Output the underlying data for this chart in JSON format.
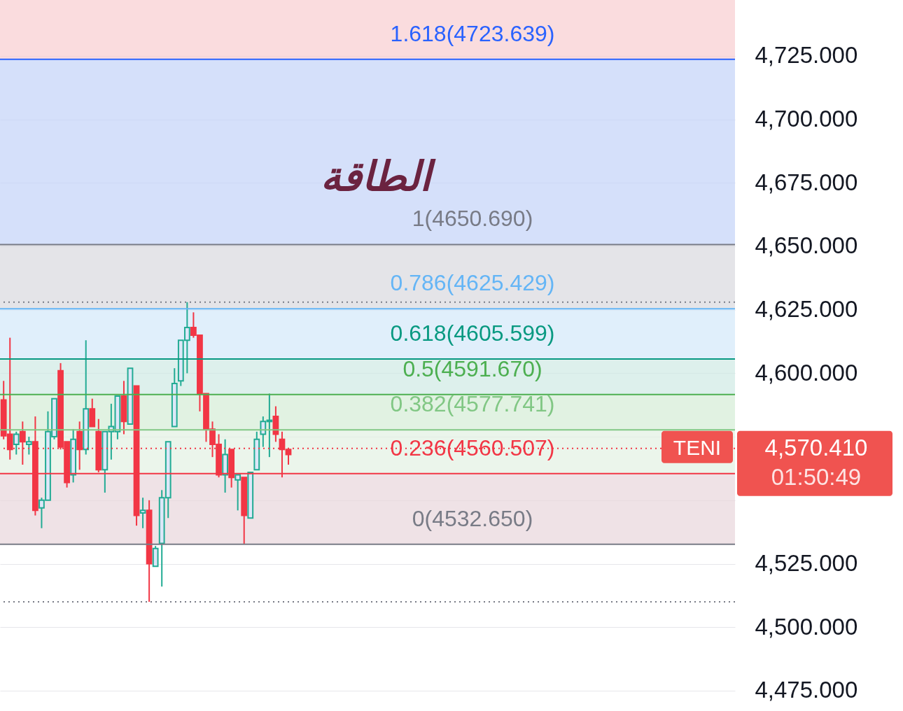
{
  "chart_data": {
    "type": "candlestick",
    "categories": [
      null,
      null,
      null,
      null,
      null,
      null,
      null,
      null,
      null,
      null,
      null,
      null,
      null,
      null,
      null,
      null,
      null,
      null,
      null,
      null,
      null,
      null,
      null,
      null,
      null,
      null,
      null,
      null,
      null,
      null,
      null,
      null,
      null,
      null,
      null,
      null,
      null,
      null,
      null,
      null,
      null,
      null,
      null,
      null,
      null,
      null,
      null,
      null,
      null,
      null,
      null,
      null,
      null,
      null,
      null,
      null,
      null,
      null,
      null,
      null,
      null,
      null,
      null,
      null,
      null,
      null,
      null,
      null,
      null,
      null,
      null,
      null,
      null,
      null,
      null,
      null,
      null,
      null,
      null,
      null,
      null,
      null,
      null,
      null,
      null,
      null,
      null,
      null,
      null,
      null,
      null,
      null,
      null,
      null,
      null,
      null,
      null,
      null,
      null,
      null,
      null,
      null,
      null,
      null,
      null,
      null,
      null,
      null,
      null,
      null,
      null,
      null,
      null,
      null,
      null,
      null
    ],
    "ohlc": [
      [
        4589.5,
        4597,
        4574,
        4575.4
      ],
      [
        4576,
        4614,
        4566,
        4570
      ],
      [
        4572,
        4577,
        4568,
        4576
      ],
      [
        4577,
        4581,
        4564,
        4573
      ],
      [
        4572,
        4575,
        4568,
        4573
      ],
      [
        4573,
        4583,
        4544,
        4546
      ],
      [
        4547,
        4551,
        4539,
        4550
      ],
      [
        4550,
        4585,
        4550,
        4577
      ],
      [
        4575,
        4590,
        4574,
        4590
      ],
      [
        4601,
        4604,
        4570,
        4571
      ],
      [
        4573,
        4573,
        4555,
        4557
      ],
      [
        4560,
        4578,
        4557,
        4574
      ],
      [
        4577,
        4581,
        4562,
        4570
      ],
      [
        4570,
        4613,
        4568,
        4586
      ],
      [
        4586,
        4590,
        4579,
        4579
      ],
      [
        4577,
        4582,
        4561,
        4562
      ],
      [
        4562,
        4577,
        4553,
        4577
      ],
      [
        4577,
        4588,
        4566,
        4579
      ],
      [
        4577,
        4591,
        4574,
        4591
      ],
      [
        4591,
        4597,
        4576,
        4581
      ],
      [
        4580,
        4602,
        4580,
        4602
      ],
      [
        4595,
        4595,
        4540,
        4544
      ],
      [
        4545,
        4551,
        4539,
        4546
      ],
      [
        4546,
        4550,
        4510,
        4525
      ],
      [
        4524,
        4532,
        4524,
        4531
      ],
      [
        4533,
        4554,
        4516,
        4551
      ],
      [
        4551,
        4573,
        4543,
        4573
      ],
      [
        4579,
        4602,
        4579,
        4596
      ],
      [
        4597,
        4613,
        4595,
        4613
      ],
      [
        4613,
        4628,
        4600,
        4618
      ],
      [
        4618,
        4624,
        4614,
        4615
      ],
      [
        4615,
        4615,
        4585,
        4592
      ],
      [
        4592,
        4592,
        4573,
        4578
      ],
      [
        4578,
        4581,
        4567,
        4572
      ],
      [
        4572,
        4576,
        4559,
        4560
      ],
      [
        4560,
        4574,
        4553,
        4568
      ],
      [
        4570,
        4570,
        4555,
        4559
      ],
      [
        4558,
        4560,
        4546,
        4560
      ],
      [
        4559,
        4559,
        4532.65,
        4544
      ],
      [
        4543,
        4561,
        4543,
        4561
      ],
      [
        4562,
        4577,
        4562,
        4574
      ],
      [
        4576,
        4583,
        4571,
        4581
      ],
      [
        4581,
        4592,
        4567,
        4581.5
      ],
      [
        4583,
        4587,
        4573,
        4576
      ],
      [
        4574,
        4577,
        4559,
        4570
      ],
      [
        4570,
        4570,
        4564,
        4568
      ],
      null,
      null,
      null,
      null,
      null,
      null,
      null,
      null,
      null,
      null,
      null,
      null,
      null,
      null,
      null,
      null,
      null,
      null,
      null,
      null,
      null,
      null,
      null,
      null,
      null,
      null,
      null,
      null,
      null,
      null,
      null,
      null,
      null,
      null,
      null,
      null,
      null,
      null,
      null,
      null,
      null,
      null,
      null,
      null,
      null,
      null,
      null,
      null,
      null,
      null,
      null,
      null,
      null,
      null,
      null,
      null,
      null,
      null,
      null,
      null,
      null,
      null,
      null,
      null,
      null,
      null,
      null,
      null,
      null,
      null
    ],
    "ylim": [
      4467,
      4747
    ],
    "yticks": [
      {
        "value": 4475,
        "label": "4,475.000"
      },
      {
        "value": 4500,
        "label": "4,500.000"
      },
      {
        "value": 4525,
        "label": "4,525.000"
      },
      {
        "value": 4550,
        "label": null
      },
      {
        "value": 4575,
        "label": null
      },
      {
        "value": 4600,
        "label": "4,600.000"
      },
      {
        "value": 4625,
        "label": "4,625.000"
      },
      {
        "value": 4650,
        "label": "4,650.000"
      },
      {
        "value": 4675,
        "label": "4,675.000"
      },
      {
        "value": 4700,
        "label": "4,700.000"
      },
      {
        "value": 4725,
        "label": "4,725.000"
      }
    ],
    "tick_labels": "y",
    "grid": "y",
    "bands": [
      {
        "axis": "y",
        "from": 4723.639,
        "to": 4747,
        "color": "#f8cdd0"
      },
      {
        "axis": "y",
        "from": 4650.69,
        "to": 4723.639,
        "color": "#c3d3f8"
      },
      {
        "axis": "y",
        "from": 4625.429,
        "to": 4650.69,
        "color": "#d8d9de"
      },
      {
        "axis": "y",
        "from": 4605.599,
        "to": 4625.429,
        "color": "#d3e8fa"
      },
      {
        "axis": "y",
        "from": 4591.67,
        "to": 4605.599,
        "color": "#cfe9e4"
      },
      {
        "axis": "y",
        "from": 4577.741,
        "to": 4591.67,
        "color": "#d4ecd5"
      },
      {
        "axis": "y",
        "from": 4560.507,
        "to": 4577.741,
        "color": "#e3f1e3"
      },
      {
        "axis": "y",
        "from": 4532.65,
        "to": 4560.507,
        "color": "#e8d5dc"
      }
    ],
    "ref_lines": [
      {
        "axis": "y",
        "value": 4723.639,
        "label": "1.618(4723.639)",
        "color": "#2962ff"
      },
      {
        "axis": "y",
        "value": 4650.69,
        "label": "1(4650.690)",
        "color": "#787b86"
      },
      {
        "axis": "y",
        "value": 4625.429,
        "label": "0.786(4625.429)",
        "color": "#64b5f6"
      },
      {
        "axis": "y",
        "value": 4605.599,
        "label": "0.618(4605.599)",
        "color": "#089981"
      },
      {
        "axis": "y",
        "value": 4591.67,
        "label": "0.5(4591.670)",
        "color": "#4caf50"
      },
      {
        "axis": "y",
        "value": 4577.741,
        "label": "0.382(4577.741)",
        "color": "#81c784"
      },
      {
        "axis": "y",
        "value": 4560.507,
        "label": "0.236(4560.507)",
        "color": "#f23645"
      },
      {
        "axis": "y",
        "value": 4532.65,
        "label": "0(4532.650)",
        "color": "#787b86"
      },
      {
        "axis": "y",
        "value": 4628,
        "color": "#787b86",
        "line_style": "dotted"
      },
      {
        "axis": "y",
        "value": 4510,
        "color": "#787b86",
        "line_style": "dotted"
      },
      {
        "axis": "y",
        "value": 4570.41,
        "color": "#f23645",
        "line_style": "dotted"
      }
    ],
    "annotations": [
      "الطاقة",
      {
        "text": "TENI",
        "y": 4570.41
      },
      "4,570.410",
      "01:50:49"
    ]
  }
}
